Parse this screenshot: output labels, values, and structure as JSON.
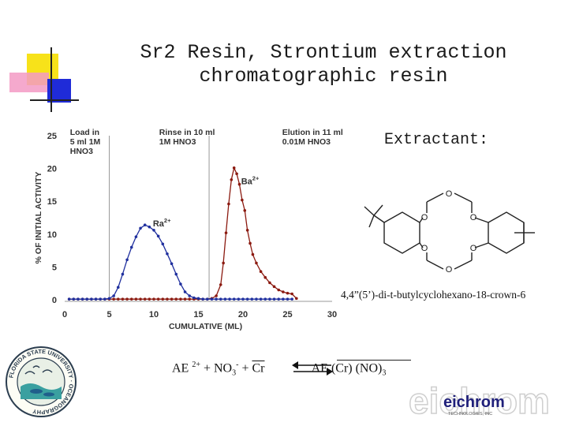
{
  "slide": {
    "title_line1": "Sr2 Resin, Strontium extraction",
    "title_line2": "chromatographic resin",
    "extractant_label": "Extractant:",
    "compound_name": "4,4”(5’)-di-t-butylcyclohexano-18-crown-6",
    "equation": {
      "left_ion": "AE",
      "left_charge": "2+",
      "plus1": "+",
      "nitrate": "NO",
      "nitrate_sub": "3",
      "nitrate_sup": "-",
      "plus2": "+",
      "resin": "Cr",
      "product": "AE (Cr) (NO)",
      "product_sub": "3"
    },
    "molecule_atom_label": "O",
    "logo_text": "eichrom",
    "logo_subtext": "TECHNOLOGIES, INC",
    "seal_text": "FLORIDA STATE UNIVERSITY · OCEANOGRAPHY",
    "colors": {
      "title": "#1a1a1a",
      "accent_yellow": "#f7e21a",
      "accent_blue": "#1f2bd8",
      "accent_pink": "#f39ac4",
      "series_ba": "#8b1a10",
      "series_ra": "#1f2f9e",
      "gridline": "#999999"
    }
  },
  "chart_data": {
    "type": "line",
    "xlabel": "CUMULATIVE (ML)",
    "ylabel": "% OF INITIAL ACTIVITY",
    "xlim": [
      0,
      30
    ],
    "ylim": [
      0,
      25
    ],
    "xticks": [
      0,
      5,
      10,
      15,
      20,
      25,
      30
    ],
    "yticks": [
      0,
      5,
      10,
      15,
      20,
      25
    ],
    "grid": false,
    "region_dividers": [
      5,
      16.2
    ],
    "region_labels": [
      {
        "lines": [
          "Load in",
          "5 ml 1M",
          "HNO3"
        ],
        "x": 0.6
      },
      {
        "lines": [
          "Rinse in 10 ml",
          "1M HNO3"
        ],
        "x": 10.6
      },
      {
        "lines": [
          "Elution in 11 ml",
          "0.01M HNO3"
        ],
        "x": 24.4
      }
    ],
    "annotations": [
      {
        "text": "Ba",
        "sup": "2+",
        "x": 20.8,
        "y": 17.6
      },
      {
        "text": "Ra",
        "sup": "2+",
        "x": 10.9,
        "y": 11.2
      }
    ],
    "series": [
      {
        "name": "Ba2+",
        "color": "#8b1a10",
        "x": [
          0.5,
          1,
          1.5,
          2,
          2.5,
          3,
          3.5,
          4,
          4.5,
          5,
          5.5,
          6,
          6.5,
          7,
          7.5,
          8,
          8.5,
          9,
          9.5,
          10,
          10.5,
          11,
          11.5,
          12,
          12.5,
          13,
          13.5,
          14,
          14.5,
          15,
          15.5,
          16,
          16.5,
          17,
          17.5,
          17.8,
          18.1,
          18.4,
          18.7,
          19,
          19.3,
          19.6,
          19.9,
          20.2,
          20.5,
          20.8,
          21.1,
          21.5,
          22,
          22.5,
          23,
          23.5,
          24,
          24.5,
          25,
          25.5,
          26
        ],
        "y": [
          0.1,
          0.1,
          0.1,
          0.1,
          0.1,
          0.1,
          0.1,
          0.1,
          0.1,
          0.1,
          0.1,
          0.1,
          0.1,
          0.1,
          0.1,
          0.1,
          0.1,
          0.1,
          0.1,
          0.1,
          0.1,
          0.1,
          0.1,
          0.1,
          0.1,
          0.1,
          0.1,
          0.1,
          0.1,
          0.1,
          0.1,
          0.1,
          0.2,
          0.6,
          2.3,
          5.6,
          10.2,
          14.6,
          18.3,
          20.1,
          19.2,
          17.6,
          15.2,
          13.6,
          10.6,
          8.6,
          6.9,
          5.6,
          4.3,
          3.4,
          2.6,
          2.0,
          1.5,
          1.2,
          1.0,
          0.9,
          0.2
        ]
      },
      {
        "name": "Ra2+",
        "color": "#1f2f9e",
        "x": [
          0.5,
          1,
          1.5,
          2,
          2.5,
          3,
          3.5,
          4,
          4.5,
          5,
          5.5,
          6,
          6.5,
          7,
          7.5,
          8,
          8.5,
          9,
          9.5,
          10,
          10.5,
          11,
          11.5,
          12,
          12.5,
          13,
          13.5,
          14,
          14.5,
          15,
          15.5,
          16,
          16.5,
          17,
          17.5,
          18,
          18.5,
          19,
          19.5,
          20,
          20.5,
          21,
          21.5,
          22,
          22.5,
          23,
          23.5,
          24,
          24.5,
          25,
          25.5
        ],
        "y": [
          0.1,
          0.1,
          0.1,
          0.1,
          0.1,
          0.1,
          0.1,
          0.1,
          0.1,
          0.2,
          0.6,
          1.9,
          3.9,
          6.1,
          8.0,
          9.6,
          10.9,
          11.4,
          11.1,
          10.6,
          9.7,
          8.5,
          7.0,
          5.5,
          3.9,
          2.4,
          1.2,
          0.6,
          0.3,
          0.2,
          0.1,
          0.1,
          0.1,
          0.1,
          0.1,
          0.1,
          0.1,
          0.1,
          0.1,
          0.1,
          0.1,
          0.1,
          0.1,
          0.1,
          0.1,
          0.1,
          0.1,
          0.1,
          0.1,
          0.1,
          0.1
        ]
      }
    ]
  }
}
